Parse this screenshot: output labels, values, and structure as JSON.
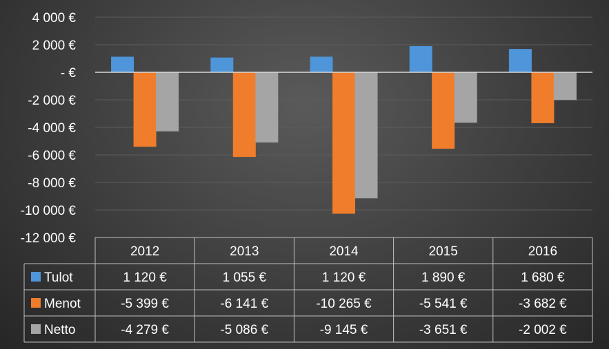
{
  "chart_data": {
    "type": "bar",
    "categories": [
      "2012",
      "2013",
      "2014",
      "2015",
      "2016"
    ],
    "series": [
      {
        "name": "Tulot",
        "values": [
          1120,
          1055,
          1120,
          1890,
          1680
        ],
        "color": "#4f95d9",
        "labels": [
          "1 120 €",
          "1 055 €",
          "1 120 €",
          "1 890 €",
          "1 680 €"
        ]
      },
      {
        "name": "Menot",
        "values": [
          -5399,
          -6141,
          -10265,
          -5541,
          -3682
        ],
        "color": "#ef7d2b",
        "labels": [
          "-5 399 €",
          "-6 141 €",
          "-10 265 €",
          "-5 541 €",
          "-3 682 €"
        ]
      },
      {
        "name": "Netto",
        "values": [
          -4279,
          -5086,
          -9145,
          -3651,
          -2002
        ],
        "color": "#a5a5a5",
        "labels": [
          "-4 279 €",
          "-5 086 €",
          "-9 145 €",
          "-3 651 €",
          "-2 002 €"
        ]
      }
    ],
    "ylim": [
      -12000,
      4000
    ],
    "y_ticks": [
      4000,
      2000,
      0,
      -2000,
      -4000,
      -6000,
      -8000,
      -10000,
      -12000
    ],
    "y_tick_labels": [
      "4 000 €",
      "2 000 €",
      "-   €",
      "-2 000 €",
      "-4 000 €",
      "-6 000 €",
      "-8 000 €",
      "-10 000 €",
      "-12 000 €"
    ],
    "grid": true,
    "legend": "data table below chart"
  }
}
